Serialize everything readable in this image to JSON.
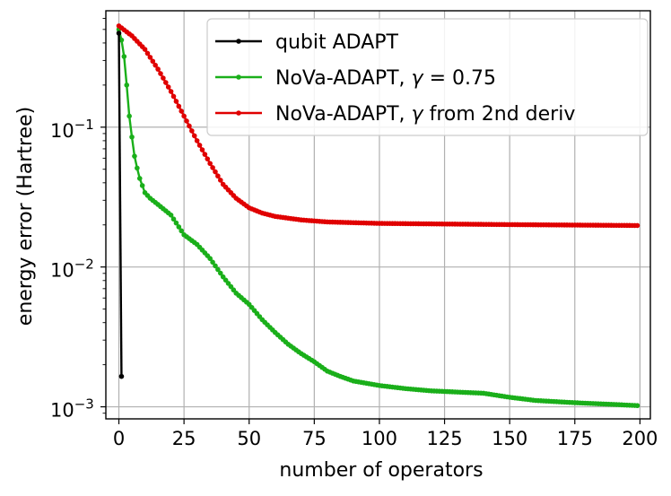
{
  "chart_data": {
    "type": "line",
    "title": "",
    "xlabel": "number of operators",
    "ylabel": "energy error (Hartree)",
    "xlim": [
      -5,
      204
    ],
    "ylim": [
      0.00082,
      0.68
    ],
    "yscale": "log",
    "grid": true,
    "x_ticks": [
      0,
      25,
      50,
      75,
      100,
      125,
      150,
      175,
      200
    ],
    "x_tick_labels": [
      "0",
      "25",
      "50",
      "75",
      "100",
      "125",
      "150",
      "175",
      "200"
    ],
    "y_ticks": [
      0.001,
      0.01,
      0.1
    ],
    "y_tick_labels": [
      {
        "base": "10",
        "exp": "−3"
      },
      {
        "base": "10",
        "exp": "−2"
      },
      {
        "base": "10",
        "exp": "−1"
      }
    ],
    "legend": {
      "position": "top-right",
      "entries": [
        {
          "pre": "qubit ADAPT",
          "gamma": "",
          "post": ""
        },
        {
          "pre": "NoVa-ADAPT, ",
          "gamma": "γ",
          "post": " = 0.75"
        },
        {
          "pre": "NoVa-ADAPT, ",
          "gamma": "γ",
          "post": " from 2nd deriv"
        }
      ]
    },
    "series": [
      {
        "name": "qubit ADAPT",
        "color": "#000000",
        "points": [
          [
            0,
            0.47
          ],
          [
            1,
            0.00165
          ]
        ]
      },
      {
        "name": "NoVa-ADAPT, γ = 0.75",
        "color": "#1aaf1a",
        "x_start": 0,
        "x_end": 199,
        "anchors": [
          [
            0,
            0.5
          ],
          [
            1,
            0.42
          ],
          [
            2,
            0.32
          ],
          [
            3,
            0.2
          ],
          [
            4,
            0.12
          ],
          [
            5,
            0.085
          ],
          [
            6,
            0.062
          ],
          [
            7,
            0.051
          ],
          [
            8,
            0.043
          ],
          [
            10,
            0.034
          ],
          [
            12,
            0.031
          ],
          [
            15,
            0.028
          ],
          [
            20,
            0.0235
          ],
          [
            25,
            0.017
          ],
          [
            30,
            0.0145
          ],
          [
            35,
            0.0115
          ],
          [
            40,
            0.0085
          ],
          [
            45,
            0.0065
          ],
          [
            50,
            0.0054
          ],
          [
            55,
            0.0042
          ],
          [
            60,
            0.0034
          ],
          [
            65,
            0.0028
          ],
          [
            70,
            0.0024
          ],
          [
            75,
            0.0021
          ],
          [
            80,
            0.0018
          ],
          [
            85,
            0.00165
          ],
          [
            90,
            0.00153
          ],
          [
            100,
            0.00142
          ],
          [
            110,
            0.00135
          ],
          [
            120,
            0.0013
          ],
          [
            140,
            0.00125
          ],
          [
            150,
            0.00117
          ],
          [
            160,
            0.00111
          ],
          [
            175,
            0.00107
          ],
          [
            190,
            0.00104
          ],
          [
            199,
            0.00102
          ]
        ]
      },
      {
        "name": "NoVa-ADAPT, γ from 2nd deriv",
        "color": "#e00000",
        "x_start": 0,
        "x_end": 199,
        "anchors": [
          [
            0,
            0.53
          ],
          [
            5,
            0.45
          ],
          [
            10,
            0.36
          ],
          [
            15,
            0.26
          ],
          [
            20,
            0.18
          ],
          [
            25,
            0.12
          ],
          [
            30,
            0.08
          ],
          [
            35,
            0.055
          ],
          [
            40,
            0.039
          ],
          [
            45,
            0.031
          ],
          [
            50,
            0.0265
          ],
          [
            55,
            0.0243
          ],
          [
            60,
            0.023
          ],
          [
            70,
            0.0217
          ],
          [
            80,
            0.021
          ],
          [
            100,
            0.0205
          ],
          [
            150,
            0.0201
          ],
          [
            199,
            0.0198
          ]
        ]
      }
    ]
  }
}
